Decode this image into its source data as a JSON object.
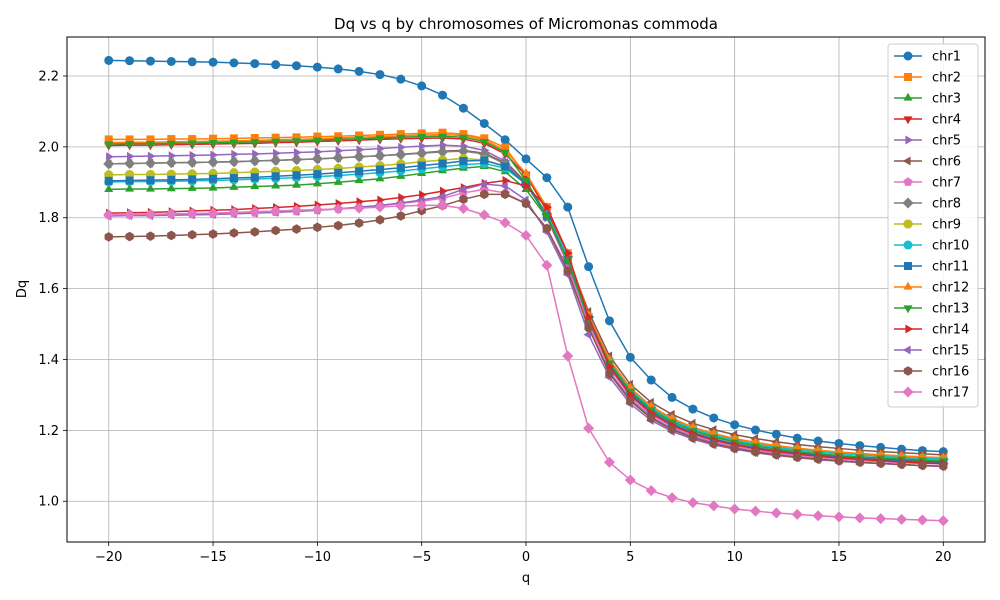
{
  "chart_data": {
    "type": "line",
    "title": "Dq vs q by chromosomes of Micromonas commoda",
    "xlabel": "q",
    "ylabel": "Dq",
    "xlim": [
      -22,
      22
    ],
    "ylim": [
      0.885,
      2.31
    ],
    "xticks": [
      -20,
      -15,
      -10,
      -5,
      0,
      5,
      10,
      15,
      20
    ],
    "yticks": [
      1.0,
      1.2,
      1.4,
      1.6,
      1.8,
      2.0,
      2.2
    ],
    "grid": true,
    "legend_position": "upper right",
    "x": [
      -20,
      -19,
      -18,
      -17,
      -16,
      -15,
      -14,
      -13,
      -12,
      -11,
      -10,
      -9,
      -8,
      -7,
      -6,
      -5,
      -4,
      -3,
      -2,
      -1,
      0,
      1,
      2,
      3,
      4,
      5,
      6,
      7,
      8,
      9,
      10,
      11,
      12,
      13,
      14,
      15,
      16,
      17,
      18,
      19,
      20
    ],
    "series": [
      {
        "name": "chr1",
        "color": "#1f77b4",
        "marker": "circle",
        "values": [
          2.244,
          2.243,
          2.242,
          2.241,
          2.24,
          2.239,
          2.237,
          2.235,
          2.232,
          2.229,
          2.225,
          2.22,
          2.213,
          2.204,
          2.191,
          2.172,
          2.146,
          2.109,
          2.066,
          2.02,
          1.966,
          1.913,
          1.83,
          1.662,
          1.509,
          1.406,
          1.342,
          1.293,
          1.26,
          1.235,
          1.216,
          1.201,
          1.189,
          1.178,
          1.17,
          1.163,
          1.157,
          1.152,
          1.147,
          1.143,
          1.14
        ]
      },
      {
        "name": "chr2",
        "color": "#ff7f0e",
        "marker": "square",
        "values": [
          2.021,
          2.021,
          2.021,
          2.022,
          2.022,
          2.023,
          2.024,
          2.025,
          2.026,
          2.027,
          2.029,
          2.03,
          2.032,
          2.034,
          2.036,
          2.038,
          2.04,
          2.036,
          2.024,
          1.998,
          1.92,
          1.83,
          1.7,
          1.52,
          1.395,
          1.318,
          1.265,
          1.232,
          1.208,
          1.19,
          1.176,
          1.165,
          1.156,
          1.149,
          1.143,
          1.138,
          1.134,
          1.131,
          1.128,
          1.125,
          1.123
        ]
      },
      {
        "name": "chr3",
        "color": "#2ca02c",
        "marker": "triangle-up",
        "values": [
          1.88,
          1.881,
          1.881,
          1.882,
          1.883,
          1.884,
          1.886,
          1.888,
          1.89,
          1.892,
          1.896,
          1.9,
          1.905,
          1.91,
          1.917,
          1.925,
          1.933,
          1.94,
          1.945,
          1.93,
          1.88,
          1.8,
          1.68,
          1.51,
          1.39,
          1.31,
          1.259,
          1.225,
          1.201,
          1.183,
          1.17,
          1.16,
          1.151,
          1.145,
          1.139,
          1.134,
          1.13,
          1.127,
          1.124,
          1.122,
          1.12
        ]
      },
      {
        "name": "chr4",
        "color": "#d62728",
        "marker": "triangle-down",
        "values": [
          2.004,
          2.005,
          2.005,
          2.006,
          2.007,
          2.008,
          2.009,
          2.01,
          2.012,
          2.013,
          2.015,
          2.017,
          2.019,
          2.021,
          2.023,
          2.024,
          2.025,
          2.022,
          2.01,
          1.98,
          1.92,
          1.82,
          1.69,
          1.51,
          1.385,
          1.305,
          1.253,
          1.218,
          1.193,
          1.175,
          1.162,
          1.151,
          1.143,
          1.136,
          1.131,
          1.126,
          1.122,
          1.119,
          1.116,
          1.114,
          1.112
        ]
      },
      {
        "name": "chr5",
        "color": "#9467bd",
        "marker": "triangle-right",
        "values": [
          1.972,
          1.973,
          1.974,
          1.975,
          1.976,
          1.977,
          1.979,
          1.98,
          1.982,
          1.984,
          1.986,
          1.989,
          1.992,
          1.995,
          1.999,
          2.002,
          2.005,
          2.002,
          1.99,
          1.96,
          1.9,
          1.8,
          1.67,
          1.49,
          1.365,
          1.288,
          1.238,
          1.205,
          1.182,
          1.165,
          1.152,
          1.142,
          1.134,
          1.128,
          1.123,
          1.119,
          1.115,
          1.112,
          1.109,
          1.107,
          1.105
        ]
      },
      {
        "name": "chr6",
        "color": "#8c564b",
        "marker": "triangle-left",
        "values": [
          1.952,
          1.953,
          1.954,
          1.955,
          1.956,
          1.957,
          1.958,
          1.96,
          1.962,
          1.964,
          1.966,
          1.969,
          1.972,
          1.975,
          1.979,
          1.983,
          1.988,
          1.99,
          1.982,
          1.955,
          1.9,
          1.81,
          1.69,
          1.535,
          1.41,
          1.33,
          1.279,
          1.245,
          1.22,
          1.202,
          1.188,
          1.177,
          1.168,
          1.16,
          1.154,
          1.149,
          1.144,
          1.14,
          1.137,
          1.134,
          1.131
        ]
      },
      {
        "name": "chr7",
        "color": "#e377c2",
        "marker": "pentagon",
        "values": [
          1.808,
          1.808,
          1.809,
          1.81,
          1.81,
          1.811,
          1.813,
          1.814,
          1.816,
          1.818,
          1.821,
          1.825,
          1.829,
          1.834,
          1.84,
          1.847,
          1.855,
          1.87,
          1.88,
          1.87,
          1.84,
          1.77,
          1.66,
          1.5,
          1.375,
          1.295,
          1.244,
          1.21,
          1.186,
          1.168,
          1.155,
          1.144,
          1.136,
          1.129,
          1.124,
          1.119,
          1.115,
          1.112,
          1.109,
          1.107,
          1.105
        ]
      },
      {
        "name": "chr8",
        "color": "#7f7f7f",
        "marker": "diamond",
        "values": [
          1.952,
          1.953,
          1.954,
          1.955,
          1.956,
          1.957,
          1.958,
          1.96,
          1.962,
          1.964,
          1.966,
          1.969,
          1.972,
          1.975,
          1.978,
          1.982,
          1.986,
          1.988,
          1.98,
          1.952,
          1.895,
          1.81,
          1.69,
          1.52,
          1.395,
          1.315,
          1.263,
          1.229,
          1.204,
          1.186,
          1.172,
          1.161,
          1.152,
          1.145,
          1.139,
          1.134,
          1.13,
          1.126,
          1.123,
          1.12,
          1.118
        ]
      },
      {
        "name": "chr9",
        "color": "#bcbd22",
        "marker": "octagon",
        "values": [
          1.921,
          1.922,
          1.922,
          1.923,
          1.924,
          1.925,
          1.927,
          1.929,
          1.931,
          1.933,
          1.936,
          1.939,
          1.943,
          1.947,
          1.952,
          1.958,
          1.963,
          1.967,
          1.963,
          1.945,
          1.895,
          1.81,
          1.69,
          1.52,
          1.395,
          1.315,
          1.263,
          1.229,
          1.204,
          1.186,
          1.172,
          1.161,
          1.152,
          1.145,
          1.139,
          1.134,
          1.13,
          1.127,
          1.124,
          1.121,
          1.119
        ]
      },
      {
        "name": "chr10",
        "color": "#17becf",
        "marker": "circle",
        "values": [
          1.901,
          1.902,
          1.902,
          1.903,
          1.904,
          1.905,
          1.907,
          1.909,
          1.911,
          1.913,
          1.916,
          1.919,
          1.923,
          1.927,
          1.932,
          1.938,
          1.944,
          1.95,
          1.953,
          1.94,
          1.895,
          1.81,
          1.69,
          1.52,
          1.395,
          1.315,
          1.263,
          1.229,
          1.204,
          1.186,
          1.172,
          1.161,
          1.152,
          1.145,
          1.139,
          1.134,
          1.13,
          1.127,
          1.124,
          1.121,
          1.119
        ]
      },
      {
        "name": "chr11",
        "color": "#1f77b4",
        "marker": "square",
        "values": [
          1.904,
          1.905,
          1.906,
          1.907,
          1.908,
          1.91,
          1.912,
          1.914,
          1.917,
          1.92,
          1.923,
          1.927,
          1.931,
          1.936,
          1.941,
          1.947,
          1.953,
          1.96,
          1.962,
          1.945,
          1.895,
          1.805,
          1.68,
          1.51,
          1.385,
          1.305,
          1.253,
          1.219,
          1.194,
          1.176,
          1.162,
          1.151,
          1.142,
          1.135,
          1.129,
          1.124,
          1.12,
          1.117,
          1.114,
          1.111,
          1.109
        ]
      },
      {
        "name": "chr12",
        "color": "#ff7f0e",
        "marker": "triangle-up",
        "values": [
          2.012,
          2.013,
          2.013,
          2.014,
          2.015,
          2.016,
          2.017,
          2.018,
          2.02,
          2.021,
          2.023,
          2.025,
          2.027,
          2.029,
          2.031,
          2.033,
          2.035,
          2.032,
          2.02,
          1.99,
          1.925,
          1.83,
          1.7,
          1.525,
          1.4,
          1.32,
          1.268,
          1.234,
          1.209,
          1.191,
          1.177,
          1.166,
          1.157,
          1.15,
          1.144,
          1.139,
          1.135,
          1.131,
          1.128,
          1.125,
          1.123
        ]
      },
      {
        "name": "chr13",
        "color": "#2ca02c",
        "marker": "triangle-down",
        "values": [
          2.008,
          2.009,
          2.009,
          2.01,
          2.011,
          2.012,
          2.013,
          2.014,
          2.016,
          2.017,
          2.019,
          2.021,
          2.023,
          2.025,
          2.027,
          2.029,
          2.03,
          2.027,
          2.015,
          1.985,
          1.905,
          1.805,
          1.68,
          1.515,
          1.39,
          1.31,
          1.258,
          1.224,
          1.199,
          1.181,
          1.167,
          1.156,
          1.147,
          1.14,
          1.134,
          1.129,
          1.125,
          1.122,
          1.119,
          1.116,
          1.114
        ]
      },
      {
        "name": "chr14",
        "color": "#d62728",
        "marker": "triangle-right",
        "values": [
          1.813,
          1.814,
          1.815,
          1.817,
          1.819,
          1.821,
          1.823,
          1.826,
          1.829,
          1.832,
          1.836,
          1.84,
          1.845,
          1.85,
          1.857,
          1.865,
          1.875,
          1.885,
          1.897,
          1.905,
          1.89,
          1.83,
          1.7,
          1.52,
          1.38,
          1.3,
          1.248,
          1.214,
          1.19,
          1.172,
          1.159,
          1.148,
          1.14,
          1.133,
          1.127,
          1.122,
          1.118,
          1.114,
          1.111,
          1.108,
          1.106
        ]
      },
      {
        "name": "chr15",
        "color": "#9467bd",
        "marker": "triangle-left",
        "values": [
          1.805,
          1.806,
          1.806,
          1.807,
          1.808,
          1.809,
          1.811,
          1.813,
          1.815,
          1.818,
          1.821,
          1.825,
          1.83,
          1.835,
          1.842,
          1.85,
          1.86,
          1.88,
          1.895,
          1.89,
          1.85,
          1.76,
          1.64,
          1.47,
          1.35,
          1.275,
          1.228,
          1.197,
          1.175,
          1.159,
          1.147,
          1.137,
          1.129,
          1.123,
          1.117,
          1.113,
          1.109,
          1.106,
          1.103,
          1.1,
          1.098
        ]
      },
      {
        "name": "chr16",
        "color": "#8c564b",
        "marker": "hexagon",
        "values": [
          1.746,
          1.747,
          1.748,
          1.75,
          1.752,
          1.754,
          1.757,
          1.76,
          1.764,
          1.768,
          1.773,
          1.778,
          1.785,
          1.794,
          1.805,
          1.82,
          1.834,
          1.852,
          1.866,
          1.866,
          1.84,
          1.77,
          1.65,
          1.49,
          1.36,
          1.283,
          1.234,
          1.202,
          1.179,
          1.162,
          1.149,
          1.139,
          1.131,
          1.124,
          1.119,
          1.114,
          1.11,
          1.107,
          1.104,
          1.101,
          1.099
        ]
      },
      {
        "name": "chr17",
        "color": "#e377c2",
        "marker": "diamond",
        "values": [
          1.808,
          1.809,
          1.81,
          1.811,
          1.812,
          1.813,
          1.815,
          1.817,
          1.819,
          1.821,
          1.823,
          1.825,
          1.827,
          1.83,
          1.833,
          1.835,
          1.835,
          1.826,
          1.808,
          1.786,
          1.75,
          1.666,
          1.41,
          1.206,
          1.11,
          1.06,
          1.03,
          1.01,
          0.996,
          0.987,
          0.978,
          0.972,
          0.967,
          0.963,
          0.959,
          0.956,
          0.953,
          0.951,
          0.949,
          0.947,
          0.945
        ]
      }
    ]
  }
}
